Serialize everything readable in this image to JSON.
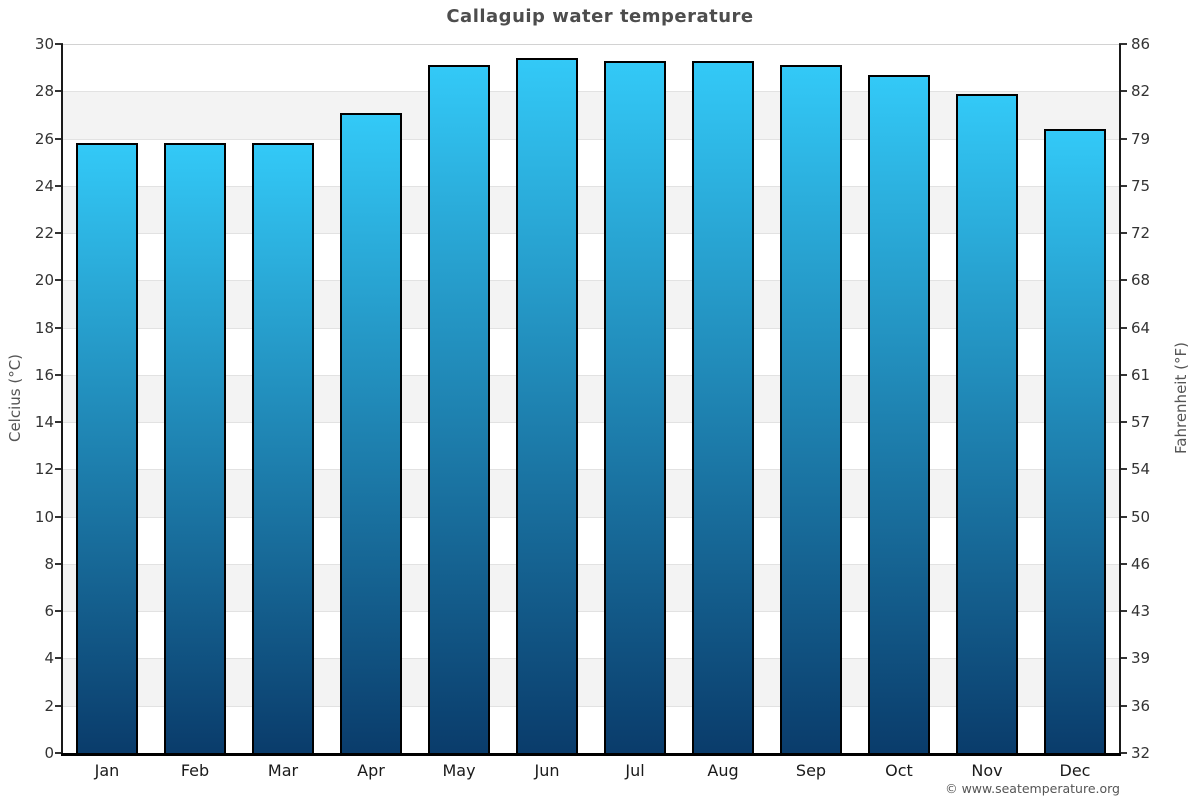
{
  "title": "Callaguip water temperature",
  "copyright": "© www.seatemperature.org",
  "axes": {
    "left_title": "Celcius (°C)",
    "right_title": "Fahrenheit (°F)"
  },
  "chart_data": {
    "type": "bar",
    "title": "Callaguip water temperature",
    "categories": [
      "Jan",
      "Feb",
      "Mar",
      "Apr",
      "May",
      "Jun",
      "Jul",
      "Aug",
      "Sep",
      "Oct",
      "Nov",
      "Dec"
    ],
    "values": [
      25.8,
      25.8,
      25.8,
      27.1,
      29.1,
      29.4,
      29.3,
      29.3,
      29.1,
      28.7,
      27.9,
      26.4
    ],
    "ylabel": "Celcius (°C)",
    "ylabel_right": "Fahrenheit (°F)",
    "xlabel": "",
    "ylim": [
      0,
      30
    ],
    "ytick_step_celsius": 2,
    "yticks_celsius": [
      0,
      2,
      4,
      6,
      8,
      10,
      12,
      14,
      16,
      18,
      20,
      22,
      24,
      26,
      28,
      30
    ],
    "yticks_fahrenheit_labels": [
      "32",
      "36",
      "39",
      "43",
      "46",
      "50",
      "54",
      "57",
      "61",
      "64",
      "68",
      "72",
      "75",
      "79",
      "82",
      "86"
    ],
    "legend": "none",
    "grid": "alternating horizontal bands every 2°C",
    "colors": {
      "bar_gradient_top": "#33c9f7",
      "bar_gradient_bottom": "#0a3c6b",
      "bar_border": "#000000",
      "band_gray": "#f3f3f3",
      "band_white": "#ffffff",
      "gridline": "#e2e2e2",
      "top_gridline": "#d2d2d2",
      "axis_line": "#1a1a1a",
      "title_text": "#4d4d4d",
      "tick_text": "#333333",
      "axis_title_text": "#555555"
    }
  }
}
